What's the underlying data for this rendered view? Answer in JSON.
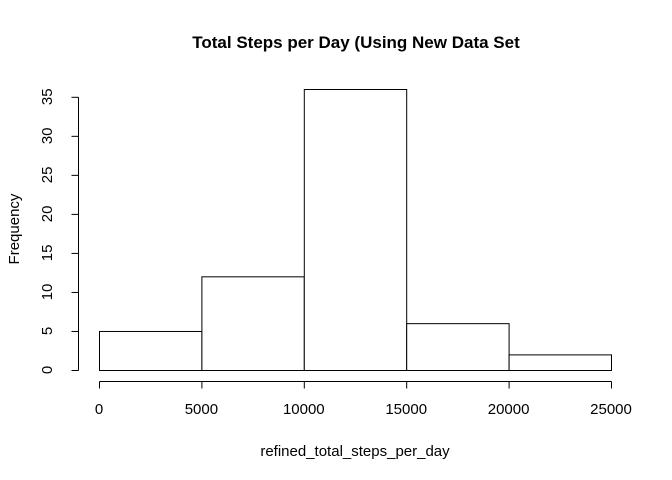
{
  "chart_data": {
    "type": "bar",
    "title": "Total Steps per Day (Using New Data Set",
    "xlabel": "refined_total_steps_per_day",
    "ylabel": "Frequency",
    "bins": [
      {
        "start": 0,
        "end": 5000,
        "count": 5
      },
      {
        "start": 5000,
        "end": 10000,
        "count": 12
      },
      {
        "start": 10000,
        "end": 15000,
        "count": 36
      },
      {
        "start": 15000,
        "end": 20000,
        "count": 6
      },
      {
        "start": 20000,
        "end": 25000,
        "count": 2
      }
    ],
    "xticks": [
      0,
      5000,
      10000,
      15000,
      20000,
      25000
    ],
    "yticks": [
      0,
      5,
      10,
      15,
      20,
      25,
      30,
      35
    ],
    "xlim": [
      0,
      25000
    ],
    "ylim": [
      0,
      36
    ],
    "grid": false,
    "colors": {
      "bar_fill": "#ffffff",
      "bar_stroke": "#000000"
    }
  }
}
